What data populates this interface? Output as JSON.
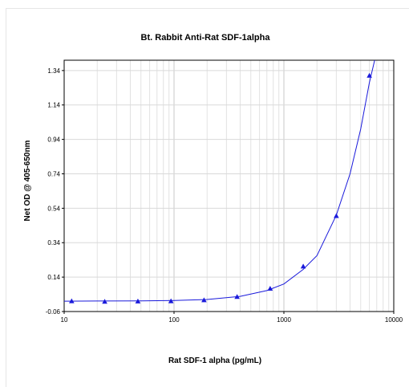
{
  "chart_data": {
    "type": "scatter",
    "title": "Bt. Rabbit Anti-Rat SDF-1alpha",
    "xlabel": "Rat SDF-1 alpha (pg/mL)",
    "ylabel": "Net OD @ 405-650nm",
    "x_scale": "log",
    "xlim": [
      10,
      10000
    ],
    "ylim": [
      -0.06,
      1.4
    ],
    "x_ticks": [
      "10",
      "100",
      "1000",
      "10000"
    ],
    "y_ticks": [
      "-0.06",
      "0.14",
      "0.34",
      "0.54",
      "0.74",
      "0.94",
      "1.14",
      "1.34"
    ],
    "grid": true,
    "series": [
      {
        "marker": "triangle",
        "color": "#1a1adb",
        "x": [
          11.7,
          23.4,
          46.9,
          93.8,
          187.5,
          375,
          750,
          1500,
          3000,
          6000
        ],
        "y": [
          0.0,
          -0.003,
          -0.001,
          0.0,
          0.006,
          0.025,
          0.073,
          0.202,
          0.495,
          1.31
        ]
      }
    ],
    "fit_curve": {
      "color": "#1a1adb",
      "x": [
        10,
        20,
        50,
        100,
        200,
        400,
        700,
        1000,
        1500,
        2000,
        3000,
        4000,
        5000,
        6000,
        6700
      ],
      "y": [
        0.0,
        0.001,
        0.002,
        0.004,
        0.01,
        0.028,
        0.062,
        0.1,
        0.185,
        0.265,
        0.5,
        0.74,
        1.0,
        1.27,
        1.42
      ]
    }
  }
}
